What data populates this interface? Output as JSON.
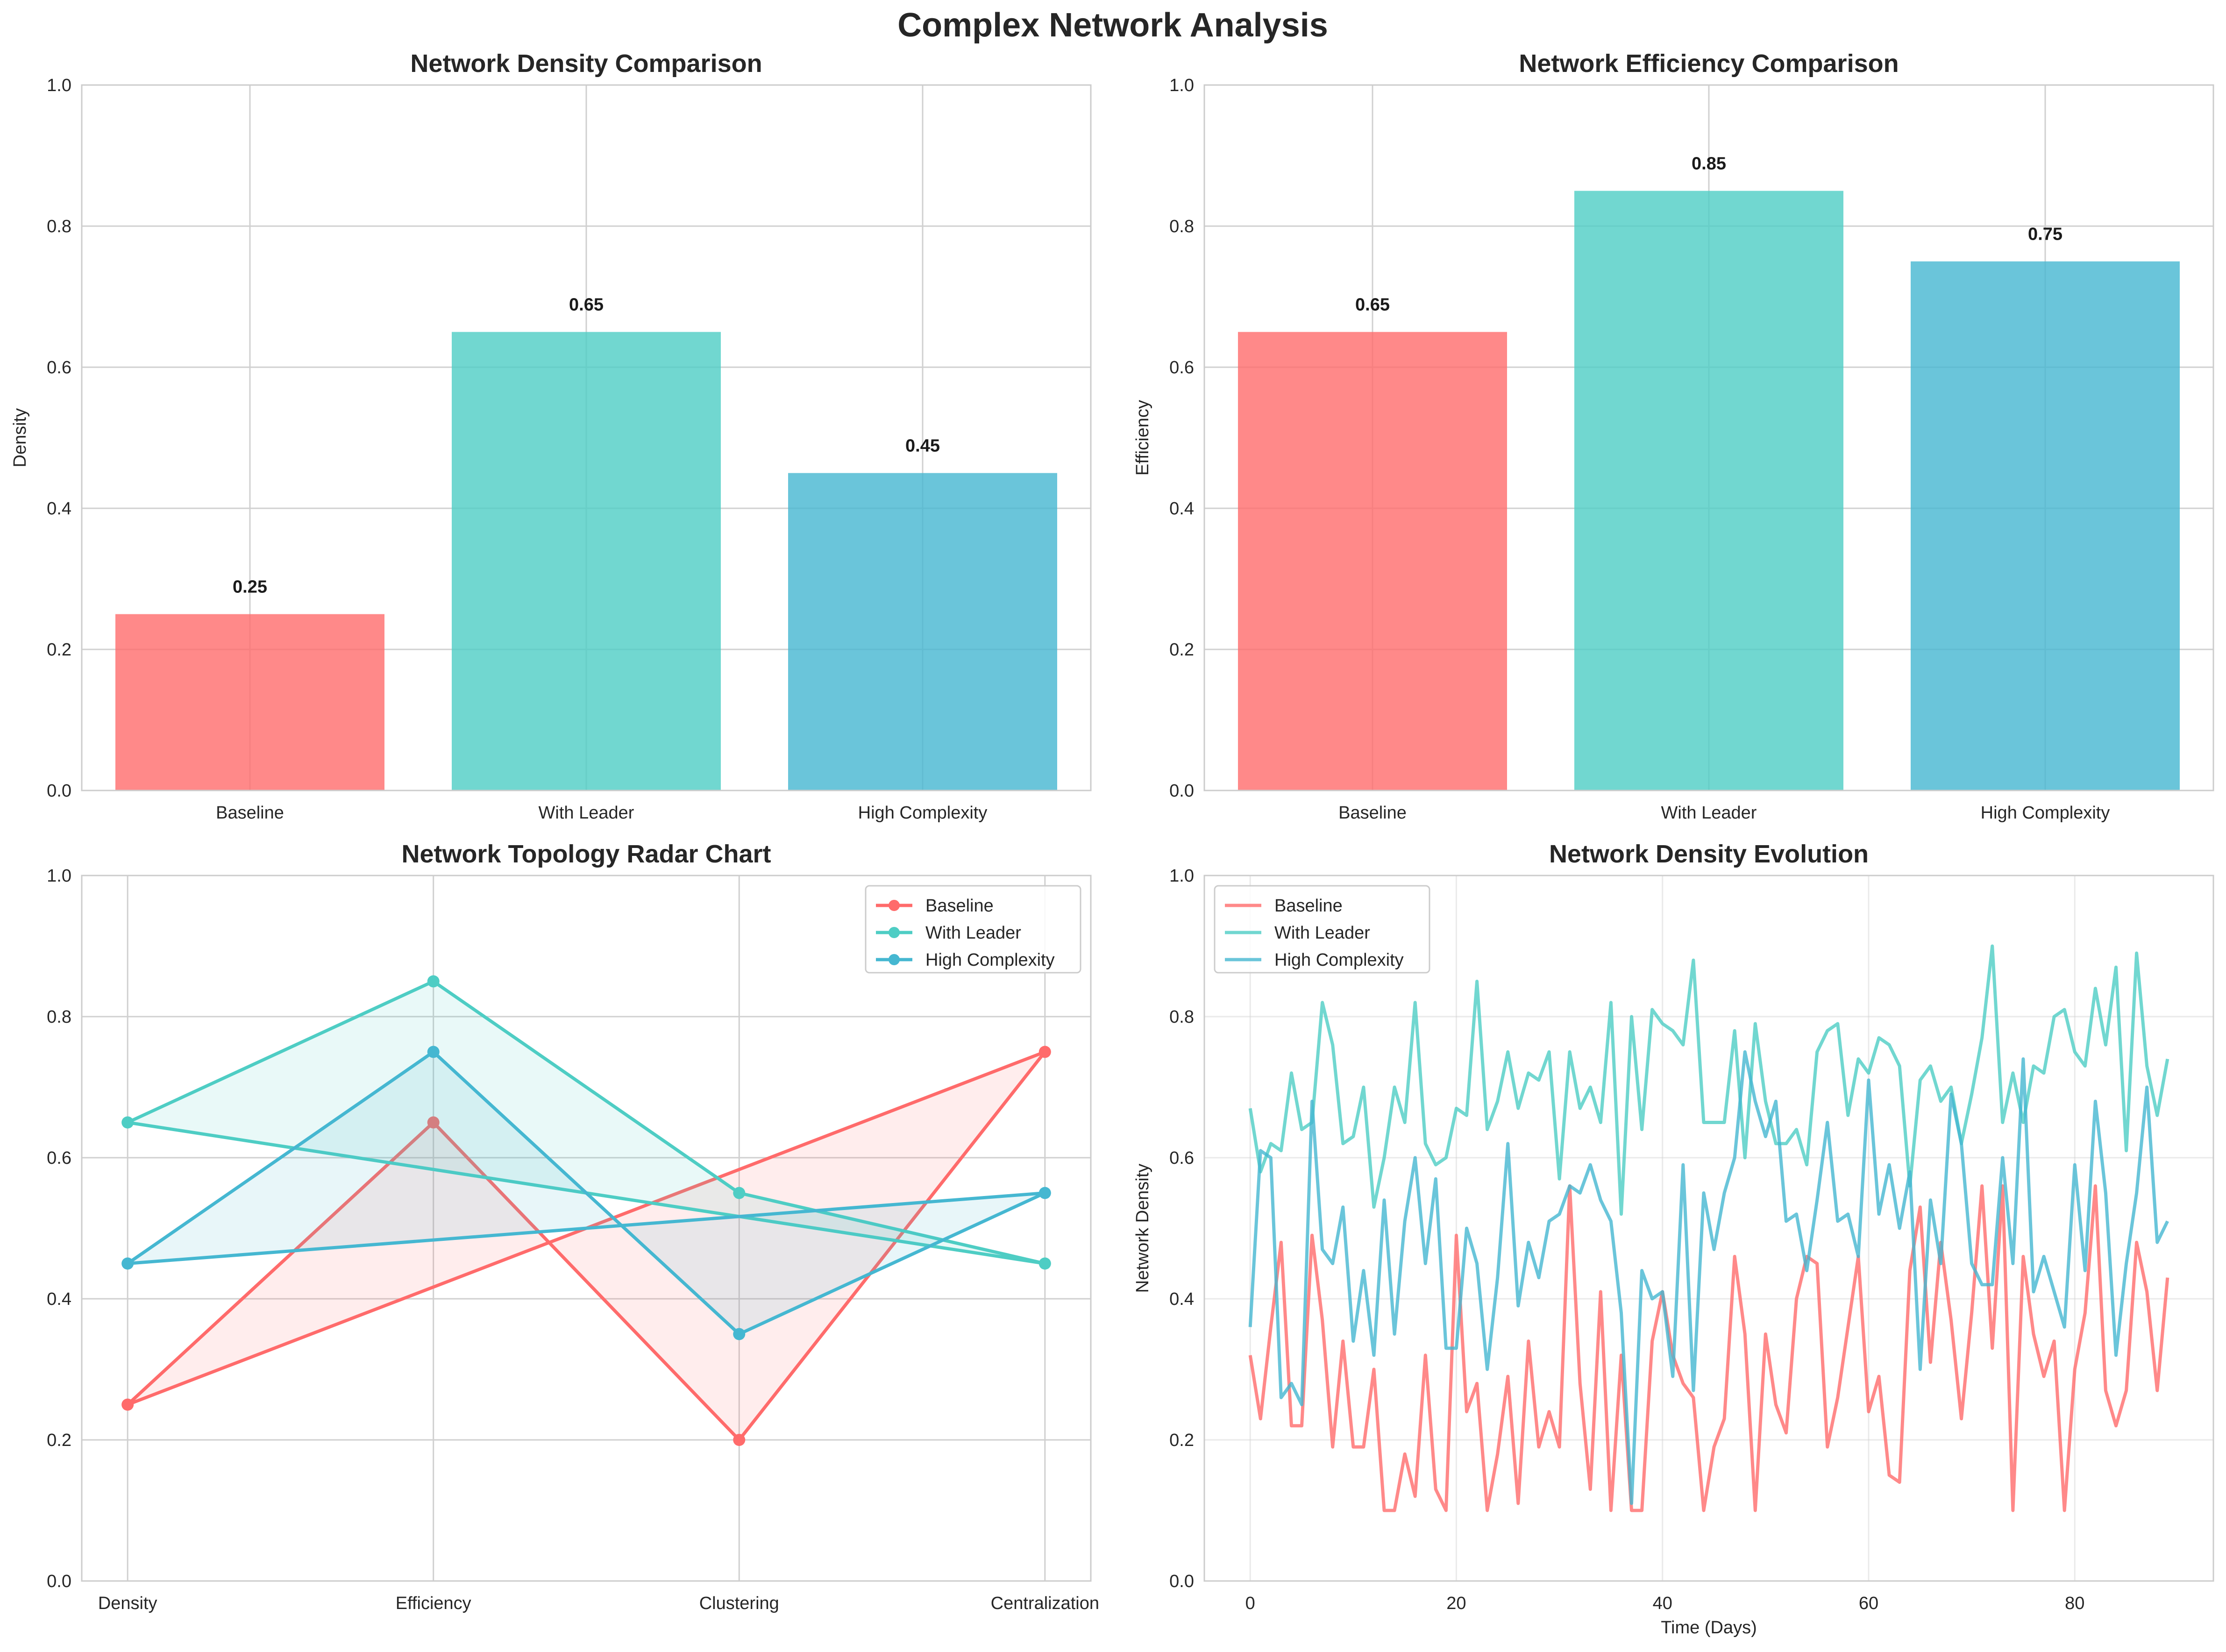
{
  "figure": {
    "title": "Complex Network Analysis"
  },
  "colors": {
    "baseline": "#FF6B6B",
    "with_leader": "#4ECDC4",
    "high_complexity": "#45B7D1",
    "grid": "#d0d0d0",
    "spine": "#cccccc"
  },
  "chart_data": [
    {
      "id": "density_bar",
      "type": "bar",
      "title": "Network Density Comparison",
      "xlabel": "",
      "ylabel": "Density",
      "categories": [
        "Baseline",
        "With Leader",
        "High Complexity"
      ],
      "values": [
        0.25,
        0.65,
        0.45
      ],
      "value_labels": [
        "0.25",
        "0.65",
        "0.45"
      ],
      "ylim": [
        0,
        1.0
      ],
      "yticks": [
        "0.0",
        "0.2",
        "0.4",
        "0.6",
        "0.8",
        "1.0"
      ],
      "grid": true
    },
    {
      "id": "efficiency_bar",
      "type": "bar",
      "title": "Network Efficiency Comparison",
      "xlabel": "",
      "ylabel": "Efficiency",
      "categories": [
        "Baseline",
        "With Leader",
        "High Complexity"
      ],
      "values": [
        0.65,
        0.85,
        0.75
      ],
      "value_labels": [
        "0.65",
        "0.85",
        "0.75"
      ],
      "ylim": [
        0,
        1.0
      ],
      "yticks": [
        "0.0",
        "0.2",
        "0.4",
        "0.6",
        "0.8",
        "1.0"
      ],
      "grid": true
    },
    {
      "id": "topology_radar",
      "type": "line",
      "title": "Network Topology Radar Chart",
      "xlabel": "",
      "ylabel": "",
      "categories": [
        "Density",
        "Efficiency",
        "Clustering",
        "Centralization"
      ],
      "series": [
        {
          "name": "Baseline",
          "values": [
            0.25,
            0.65,
            0.2,
            0.75
          ]
        },
        {
          "name": "With Leader",
          "values": [
            0.65,
            0.85,
            0.55,
            0.45
          ]
        },
        {
          "name": "High Complexity",
          "values": [
            0.45,
            0.75,
            0.35,
            0.55
          ]
        }
      ],
      "closed_polygon": true,
      "ylim": [
        0,
        1.0
      ],
      "yticks": [
        "0.0",
        "0.2",
        "0.4",
        "0.6",
        "0.8",
        "1.0"
      ],
      "legend": "top-right",
      "grid": true
    },
    {
      "id": "density_evolution",
      "type": "line",
      "title": "Network Density Evolution",
      "xlabel": "Time (Days)",
      "ylabel": "Network Density",
      "x": [
        0,
        1,
        2,
        3,
        4,
        5,
        6,
        7,
        8,
        9,
        10,
        11,
        12,
        13,
        14,
        15,
        16,
        17,
        18,
        19,
        20,
        21,
        22,
        23,
        24,
        25,
        26,
        27,
        28,
        29,
        30,
        31,
        32,
        33,
        34,
        35,
        36,
        37,
        38,
        39,
        40,
        41,
        42,
        43,
        44,
        45,
        46,
        47,
        48,
        49,
        50,
        51,
        52,
        53,
        54,
        55,
        56,
        57,
        58,
        59,
        60,
        61,
        62,
        63,
        64,
        65,
        66,
        67,
        68,
        69,
        70,
        71,
        72,
        73,
        74,
        75,
        76,
        77,
        78,
        79,
        80,
        81,
        82,
        83,
        84,
        85,
        86,
        87,
        88,
        89
      ],
      "series": [
        {
          "name": "Baseline",
          "values": [
            0.32,
            0.23,
            0.36,
            0.48,
            0.22,
            0.22,
            0.49,
            0.37,
            0.19,
            0.34,
            0.19,
            0.19,
            0.3,
            0.1,
            0.1,
            0.18,
            0.12,
            0.32,
            0.13,
            0.1,
            0.49,
            0.24,
            0.28,
            0.1,
            0.18,
            0.29,
            0.11,
            0.34,
            0.19,
            0.24,
            0.19,
            0.56,
            0.28,
            0.13,
            0.41,
            0.1,
            0.32,
            0.1,
            0.1,
            0.34,
            0.41,
            0.32,
            0.28,
            0.26,
            0.1,
            0.19,
            0.23,
            0.46,
            0.35,
            0.1,
            0.35,
            0.25,
            0.21,
            0.4,
            0.46,
            0.45,
            0.19,
            0.26,
            0.36,
            0.46,
            0.24,
            0.29,
            0.15,
            0.14,
            0.44,
            0.53,
            0.31,
            0.48,
            0.37,
            0.23,
            0.38,
            0.56,
            0.33,
            0.56,
            0.1,
            0.46,
            0.35,
            0.29,
            0.34,
            0.1,
            0.3,
            0.38,
            0.56,
            0.27,
            0.22,
            0.27,
            0.48,
            0.41,
            0.27,
            0.43
          ]
        },
        {
          "name": "With Leader",
          "values": [
            0.67,
            0.58,
            0.62,
            0.61,
            0.72,
            0.64,
            0.65,
            0.82,
            0.76,
            0.62,
            0.63,
            0.7,
            0.53,
            0.6,
            0.7,
            0.65,
            0.82,
            0.62,
            0.59,
            0.6,
            0.67,
            0.66,
            0.85,
            0.64,
            0.68,
            0.75,
            0.67,
            0.72,
            0.71,
            0.75,
            0.57,
            0.75,
            0.67,
            0.7,
            0.65,
            0.82,
            0.52,
            0.8,
            0.64,
            0.81,
            0.79,
            0.78,
            0.76,
            0.88,
            0.65,
            0.65,
            0.65,
            0.78,
            0.6,
            0.79,
            0.68,
            0.62,
            0.62,
            0.64,
            0.59,
            0.75,
            0.78,
            0.79,
            0.66,
            0.74,
            0.72,
            0.77,
            0.76,
            0.73,
            0.56,
            0.71,
            0.73,
            0.68,
            0.7,
            0.62,
            0.69,
            0.77,
            0.9,
            0.65,
            0.72,
            0.65,
            0.73,
            0.72,
            0.8,
            0.81,
            0.75,
            0.73,
            0.84,
            0.76,
            0.87,
            0.61,
            0.89,
            0.73,
            0.66,
            0.74
          ]
        },
        {
          "name": "High Complexity",
          "values": [
            0.36,
            0.61,
            0.6,
            0.26,
            0.28,
            0.25,
            0.68,
            0.47,
            0.45,
            0.53,
            0.34,
            0.44,
            0.32,
            0.54,
            0.35,
            0.51,
            0.6,
            0.45,
            0.57,
            0.33,
            0.33,
            0.5,
            0.45,
            0.3,
            0.43,
            0.62,
            0.39,
            0.48,
            0.43,
            0.51,
            0.52,
            0.56,
            0.55,
            0.59,
            0.54,
            0.51,
            0.38,
            0.11,
            0.44,
            0.4,
            0.41,
            0.29,
            0.59,
            0.27,
            0.55,
            0.47,
            0.55,
            0.6,
            0.75,
            0.68,
            0.63,
            0.68,
            0.51,
            0.52,
            0.44,
            0.54,
            0.65,
            0.51,
            0.52,
            0.46,
            0.71,
            0.52,
            0.59,
            0.5,
            0.58,
            0.3,
            0.54,
            0.45,
            0.69,
            0.62,
            0.45,
            0.42,
            0.42,
            0.6,
            0.45,
            0.74,
            0.41,
            0.46,
            0.41,
            0.36,
            0.59,
            0.44,
            0.68,
            0.55,
            0.32,
            0.45,
            0.55,
            0.7,
            0.48,
            0.51
          ]
        }
      ],
      "xlim": [
        -4.45,
        93.45
      ],
      "xticks": [
        "0",
        "20",
        "40",
        "60",
        "80"
      ],
      "xtick_values": [
        0,
        20,
        40,
        60,
        80
      ],
      "ylim": [
        0,
        1.0
      ],
      "yticks": [
        "0.0",
        "0.2",
        "0.4",
        "0.6",
        "0.8",
        "1.0"
      ],
      "legend": "top-left",
      "grid": true
    }
  ]
}
